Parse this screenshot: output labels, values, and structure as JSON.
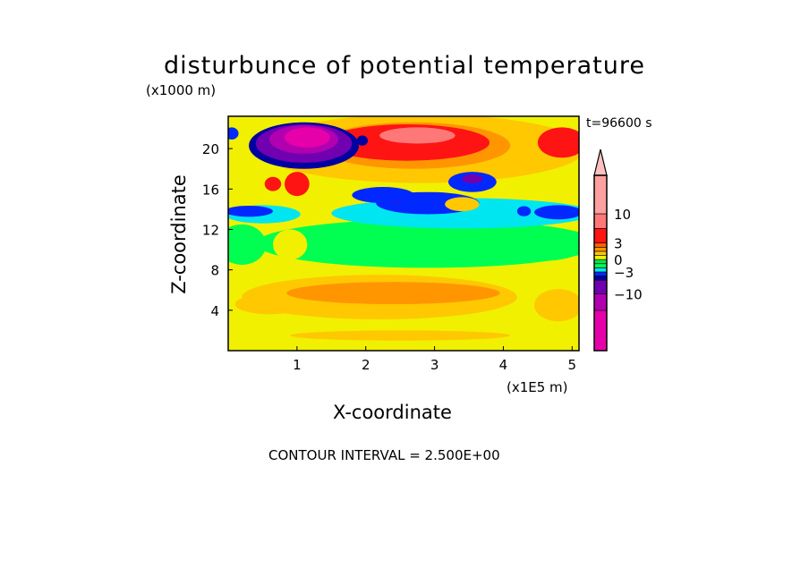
{
  "chart_data": {
    "type": "heatmap",
    "title": "disturbunce of potential temperature",
    "xlabel": "X-coordinate",
    "ylabel": "Z-coordinate",
    "x_unit": "(x1E5 m)",
    "y_unit": "(x1000 m)",
    "time_label": "t=96600 s",
    "footer": "CONTOUR INTERVAL = 2.500E+00",
    "xlim": [
      0,
      5.1
    ],
    "ylim": [
      0,
      23.2
    ],
    "xticks": [
      1,
      2,
      3,
      4,
      5
    ],
    "yticks": [
      4,
      8,
      12,
      16,
      20
    ],
    "colorbar": {
      "labels": [
        {
          "text": "10",
          "value": 10
        },
        {
          "text": "3",
          "value": 3
        },
        {
          "text": "0",
          "value": 0
        },
        {
          "text": "−3",
          "value": -3
        },
        {
          "text": "−10",
          "value": -10
        }
      ],
      "levels": [
        {
          "min": -20,
          "max": -12.5,
          "color": "#e600aa"
        },
        {
          "min": -12.5,
          "max": -10,
          "color": "#b000b0"
        },
        {
          "min": -10,
          "max": -7.5,
          "color": "#7000b0"
        },
        {
          "min": -7.5,
          "max": -5,
          "color": "#0000a0"
        },
        {
          "min": -5,
          "max": -3,
          "color": "#0028ff"
        },
        {
          "min": -3,
          "max": -2,
          "color": "#00e6f0"
        },
        {
          "min": -2,
          "max": -1,
          "color": "#00ff50"
        },
        {
          "min": -1,
          "max": 0,
          "color": "#00e650"
        },
        {
          "min": 0,
          "max": 1,
          "color": "#f0f000"
        },
        {
          "min": 1,
          "max": 2,
          "color": "#ffc800"
        },
        {
          "min": 2,
          "max": 2.5,
          "color": "#ff9600"
        },
        {
          "min": 2.5,
          "max": 3,
          "color": "#ff6400"
        },
        {
          "min": 3,
          "max": 7.5,
          "color": "#ff1414"
        },
        {
          "min": 7.5,
          "max": 10,
          "color": "#ff7878"
        },
        {
          "min": 10,
          "max": 15,
          "color": "#ffa0a0"
        },
        {
          "min": 15,
          "max": 20,
          "color": "#ffc0c0"
        }
      ]
    },
    "field_background_color": "#f0f000",
    "field_features": [
      {
        "x": 2.2,
        "z": 5.3,
        "rx": 2.0,
        "rz": 2.2,
        "color": "#ffc800"
      },
      {
        "x": 2.4,
        "z": 5.7,
        "rx": 1.55,
        "rz": 1.1,
        "color": "#ff9600"
      },
      {
        "x": 0.6,
        "z": 4.6,
        "rx": 0.5,
        "rz": 1.0,
        "color": "#ffc800"
      },
      {
        "x": 2.5,
        "z": 1.5,
        "rx": 1.6,
        "rz": 0.5,
        "color": "#ffc800"
      },
      {
        "x": 4.8,
        "z": 4.5,
        "rx": 0.35,
        "rz": 1.6,
        "color": "#ffc800"
      },
      {
        "x": 2.9,
        "z": 10.6,
        "rx": 2.5,
        "rz": 2.4,
        "color": "#00ff50"
      },
      {
        "x": 0.2,
        "z": 10.5,
        "rx": 0.35,
        "rz": 2.0,
        "color": "#00ff50"
      },
      {
        "x": 4.6,
        "z": 10.5,
        "rx": 0.6,
        "rz": 1.6,
        "color": "#00ff50"
      },
      {
        "x": 0.9,
        "z": 10.5,
        "rx": 0.25,
        "rz": 1.5,
        "color": "#f0f000"
      },
      {
        "x": 3.4,
        "z": 13.6,
        "rx": 1.9,
        "rz": 1.5,
        "color": "#00e6f0"
      },
      {
        "x": 0.5,
        "z": 13.5,
        "rx": 0.55,
        "rz": 0.9,
        "color": "#00e6f0"
      },
      {
        "x": 2.9,
        "z": 14.6,
        "rx": 0.75,
        "rz": 1.1,
        "color": "#0028ff"
      },
      {
        "x": 0.3,
        "z": 13.8,
        "rx": 0.35,
        "rz": 0.55,
        "color": "#0028ff"
      },
      {
        "x": 4.8,
        "z": 13.7,
        "rx": 0.35,
        "rz": 0.7,
        "color": "#0028ff"
      },
      {
        "x": 4.3,
        "z": 13.8,
        "rx": 0.1,
        "rz": 0.5,
        "color": "#0028ff"
      },
      {
        "x": 2.4,
        "z": 15.0,
        "rx": 0.15,
        "rz": 0.4,
        "color": "#7000b0"
      },
      {
        "x": 3.4,
        "z": 14.5,
        "rx": 0.25,
        "rz": 0.7,
        "color": "#ffc800"
      },
      {
        "x": 2.8,
        "z": 20.0,
        "rx": 2.4,
        "rz": 3.4,
        "color": "#ffc800"
      },
      {
        "x": 2.7,
        "z": 20.3,
        "rx": 1.4,
        "rz": 2.3,
        "color": "#ff9600"
      },
      {
        "x": 2.6,
        "z": 20.6,
        "rx": 1.2,
        "rz": 1.8,
        "color": "#ff1414"
      },
      {
        "x": 2.75,
        "z": 21.3,
        "rx": 0.55,
        "rz": 0.8,
        "color": "#ff7878"
      },
      {
        "x": 4.85,
        "z": 20.6,
        "rx": 0.35,
        "rz": 1.5,
        "color": "#ff1414"
      },
      {
        "x": 3.55,
        "z": 16.7,
        "rx": 0.35,
        "rz": 1.0,
        "color": "#0028ff"
      },
      {
        "x": 3.55,
        "z": 17.0,
        "rx": 0.15,
        "rz": 0.45,
        "color": "#7000b0"
      },
      {
        "x": 2.25,
        "z": 15.4,
        "rx": 0.45,
        "rz": 0.8,
        "color": "#0028ff"
      },
      {
        "x": 1.0,
        "z": 16.5,
        "rx": 0.18,
        "rz": 1.2,
        "color": "#ff1414"
      },
      {
        "x": 0.65,
        "z": 16.5,
        "rx": 0.12,
        "rz": 0.7,
        "color": "#ff1414"
      },
      {
        "x": 1.1,
        "z": 20.3,
        "rx": 0.8,
        "rz": 2.3,
        "color": "#0000a0"
      },
      {
        "x": 1.1,
        "z": 20.5,
        "rx": 0.7,
        "rz": 1.9,
        "color": "#7000b0"
      },
      {
        "x": 1.1,
        "z": 20.9,
        "rx": 0.5,
        "rz": 1.4,
        "color": "#b000b0"
      },
      {
        "x": 1.15,
        "z": 21.1,
        "rx": 0.33,
        "rz": 1.0,
        "color": "#e600aa"
      },
      {
        "x": 0.05,
        "z": 21.5,
        "rx": 0.1,
        "rz": 0.6,
        "color": "#0028ff"
      },
      {
        "x": 1.95,
        "z": 20.8,
        "rx": 0.08,
        "rz": 0.5,
        "color": "#0000a0"
      }
    ]
  }
}
